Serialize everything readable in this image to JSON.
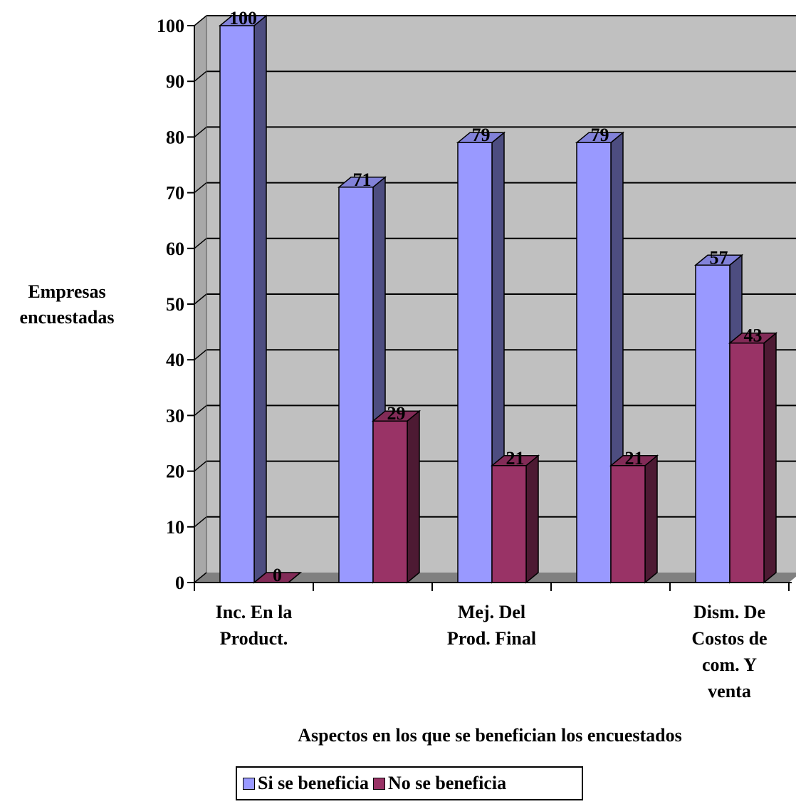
{
  "chart_data": {
    "type": "bar",
    "categories": [
      "Inc. En la Product.",
      "",
      "Mej. Del Prod. Final",
      "",
      "Dism. De Costos de com. Y venta"
    ],
    "category_labels": [
      [
        "Inc. En la",
        "Product."
      ],
      [],
      [
        "Mej. Del",
        "Prod. Final"
      ],
      [],
      [
        "Dism. De",
        "Costos de",
        "com. Y",
        "venta"
      ]
    ],
    "series": [
      {
        "name": "Si se beneficia",
        "values": [
          100,
          71,
          79,
          79,
          57
        ],
        "color": "#9999ff"
      },
      {
        "name": "No se beneficia",
        "values": [
          0,
          29,
          21,
          21,
          43
        ],
        "color": "#993366"
      }
    ],
    "ylabel_lines": [
      "Empresas",
      "encuestadas"
    ],
    "xlabel": "Aspectos en los que se benefician los encuestados",
    "ylim": [
      0,
      100
    ],
    "yticks": [
      0,
      10,
      20,
      30,
      40,
      50,
      60,
      70,
      80,
      90,
      100
    ],
    "grid": true,
    "legend_position": "bottom",
    "style": "3d-column",
    "plot_background": "#c0c0c0"
  }
}
